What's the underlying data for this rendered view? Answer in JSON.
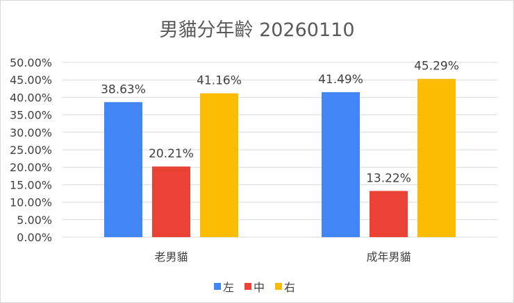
{
  "chart_data": {
    "type": "bar",
    "title": "男貓分年齡 20260110",
    "categories": [
      "老男貓",
      "成年男貓"
    ],
    "series": [
      {
        "name": "左",
        "color": "#4285f4",
        "values": [
          38.63,
          41.49
        ],
        "labels": [
          "38.63%",
          "41.49%"
        ]
      },
      {
        "name": "中",
        "color": "#ea4335",
        "values": [
          20.21,
          13.22
        ],
        "labels": [
          "20.21%",
          "13.22%"
        ]
      },
      {
        "name": "右",
        "color": "#fbbc04",
        "values": [
          41.16,
          45.29
        ],
        "labels": [
          "41.16%",
          "45.29%"
        ]
      }
    ],
    "ylim": [
      0,
      50
    ],
    "yticks": [
      "0.00%",
      "5.00%",
      "10.00%",
      "15.00%",
      "20.00%",
      "25.00%",
      "30.00%",
      "35.00%",
      "40.00%",
      "45.00%",
      "50.00%"
    ],
    "grid": true,
    "legend_position": "bottom",
    "gridline_color": "#d9d9d9"
  }
}
